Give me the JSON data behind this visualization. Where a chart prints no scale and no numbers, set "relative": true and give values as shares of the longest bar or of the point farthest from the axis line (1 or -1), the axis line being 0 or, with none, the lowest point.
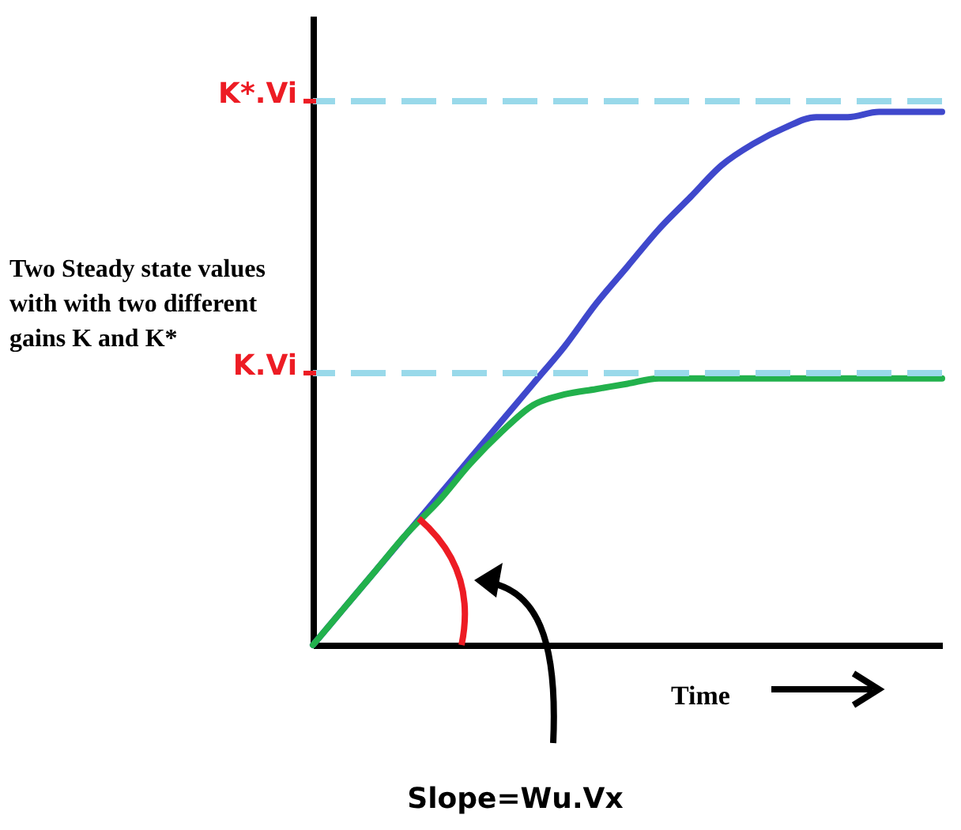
{
  "chart_data": {
    "type": "line",
    "relative": true,
    "xlabel": "Time",
    "categories": [
      null,
      null,
      null,
      null,
      null,
      null,
      null,
      null,
      null,
      null,
      null,
      null,
      null,
      null,
      null,
      null,
      null,
      null,
      null,
      null,
      null
    ],
    "series": [
      {
        "color": "#3f48cc",
        "values": [
          0,
          0.07,
          0.14,
          0.21,
          0.28,
          0.35,
          0.42,
          0.49,
          0.56,
          0.64,
          0.71,
          0.78,
          0.84,
          0.9,
          0.94,
          0.97,
          0.99,
          0.99,
          1,
          1,
          1
        ]
      },
      {
        "color": "#22b14c",
        "values": [
          0,
          0.07,
          0.14,
          0.21,
          0.27,
          0.34,
          0.4,
          0.45,
          0.47,
          0.48,
          0.49,
          0.5,
          0.5,
          0.5,
          0.5,
          0.5,
          0.5,
          0.5,
          0.5,
          0.5,
          0.5
        ]
      }
    ],
    "ref_lines": [
      {
        "axis": "y",
        "value": 1.02,
        "label": "K*.Vi",
        "color": "#99d9ea",
        "line_style": "dashed"
      },
      {
        "axis": "y",
        "value": 0.51,
        "label": "K.Vi",
        "color": "#99d9ea",
        "line_style": "dashed"
      }
    ],
    "annotations": [
      "Two Steady state values with with two different gains K and K*",
      "Slope=Wu.Vx"
    ],
    "grid": false,
    "marker": "none",
    "line_style": "solid"
  }
}
